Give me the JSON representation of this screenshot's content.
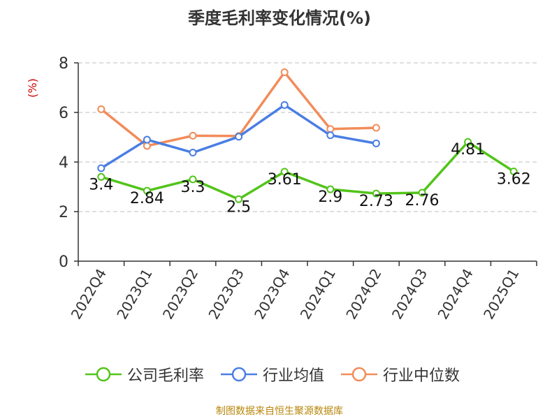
{
  "title": "季度毛利率变化情况(%)",
  "footer": "制图数据来自恒生聚源数据库",
  "colors": {
    "company": "#52c41a",
    "avg": "#4a7ee3",
    "median": "#f28c5a",
    "ylabel": "#cc0000",
    "footer": "#b8860b",
    "grid": "#cccccc",
    "axis": "#333333"
  },
  "chart_data": {
    "type": "line",
    "title": "季度毛利率变化情况(%)",
    "ylabel": "(%)",
    "ylim": [
      0,
      8
    ],
    "yticks": [
      0,
      2,
      4,
      6,
      8
    ],
    "grid": true,
    "legend_position": "bottom",
    "categories": [
      "2022Q4",
      "2023Q1",
      "2023Q2",
      "2023Q3",
      "2023Q4",
      "2024Q1",
      "2024Q2",
      "2024Q3",
      "2024Q4",
      "2025Q1"
    ],
    "series": [
      {
        "name": "公司毛利率",
        "values": [
          3.4,
          2.84,
          3.3,
          2.5,
          3.61,
          2.9,
          2.73,
          2.76,
          4.81,
          3.62
        ],
        "labels": [
          "3.4",
          "2.84",
          "3.3",
          "2.5",
          "3.61",
          "2.9",
          "2.73",
          "2.76",
          "4.81",
          "3.62"
        ]
      },
      {
        "name": "行业均值",
        "values": [
          3.75,
          4.9,
          4.38,
          5.02,
          6.3,
          5.08,
          4.75,
          null,
          null,
          null
        ]
      },
      {
        "name": "行业中位数",
        "values": [
          6.13,
          4.65,
          5.06,
          5.05,
          7.62,
          5.33,
          5.38,
          null,
          null,
          null
        ]
      }
    ]
  }
}
